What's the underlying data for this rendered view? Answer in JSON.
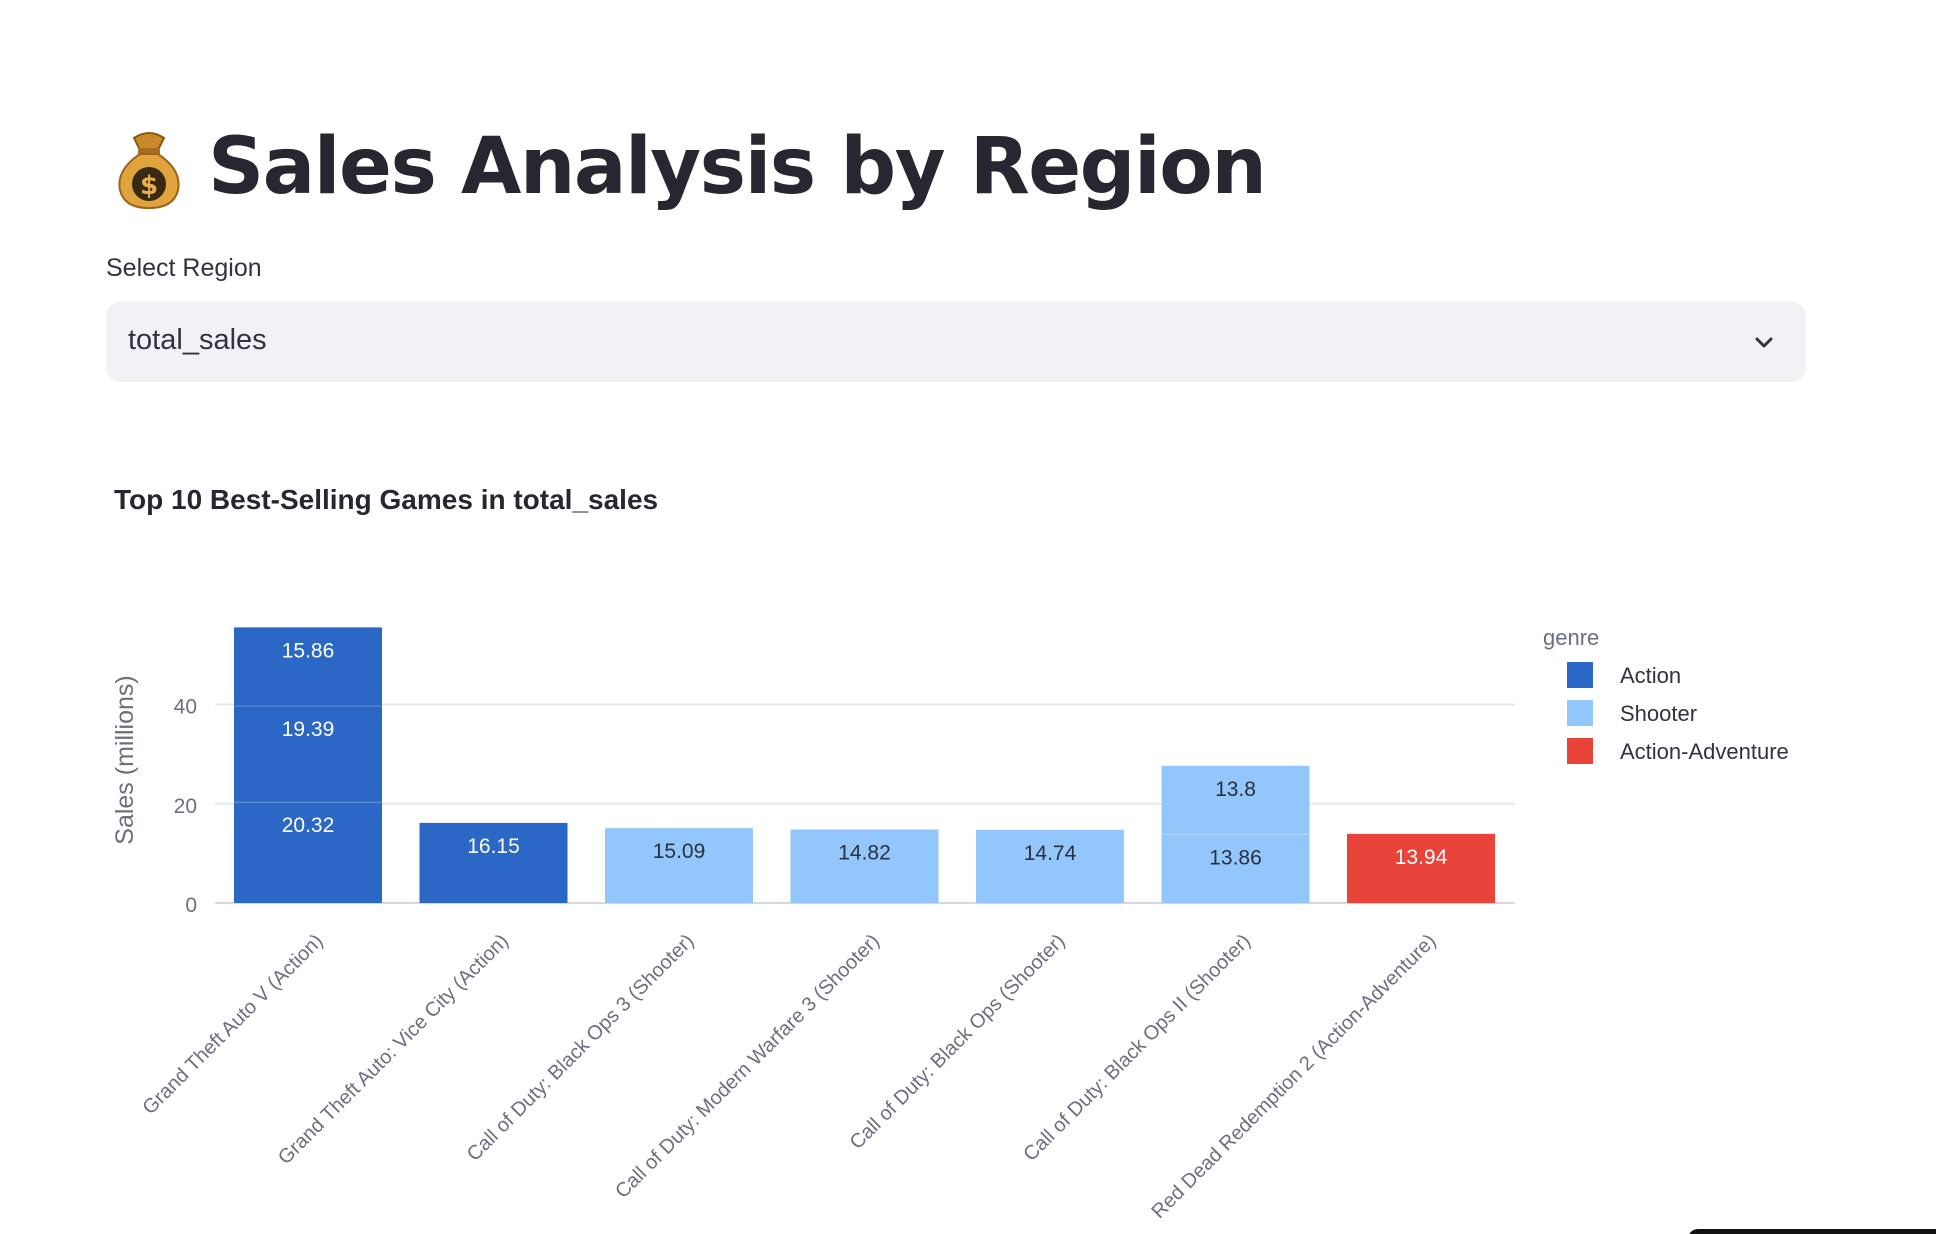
{
  "header": {
    "icon": "money-bag-icon",
    "title": "Sales Analysis by Region"
  },
  "region_select": {
    "label": "Select Region",
    "value": "total_sales",
    "icon": "chevron-down-icon"
  },
  "chart": {
    "title": "Top 10 Best-Selling Games in total_sales"
  },
  "chart_data": {
    "type": "bar",
    "stacked": true,
    "ylabel": "Sales (millions)",
    "xlabel": "",
    "ylim": [
      0,
      55
    ],
    "yticks": [
      0,
      20,
      40
    ],
    "grid": true,
    "legend_title": "genre",
    "legend_position": "right",
    "series": [
      {
        "name": "Action",
        "color": "#2b67c4"
      },
      {
        "name": "Shooter",
        "color": "#93c6fa"
      },
      {
        "name": "Action-Adventure",
        "color": "#e8443a"
      }
    ],
    "categories": [
      "Grand Theft Auto V (Action)",
      "Grand Theft Auto: Vice City (Action)",
      "Call of Duty: Black Ops 3 (Shooter)",
      "Call of Duty: Modern Warfare 3 (Shooter)",
      "Call of Duty: Black Ops (Shooter)",
      "Call of Duty: Black Ops II (Shooter)",
      "Red Dead Redemption 2 (Action-Adventure)"
    ],
    "bars": [
      {
        "genre": "Action",
        "segments": [
          20.32,
          19.39,
          15.86
        ],
        "labels": [
          "20.32",
          "19.39",
          "15.86"
        ]
      },
      {
        "genre": "Action",
        "segments": [
          16.15
        ],
        "labels": [
          "16.15"
        ]
      },
      {
        "genre": "Shooter",
        "segments": [
          15.09
        ],
        "labels": [
          "15.09"
        ]
      },
      {
        "genre": "Shooter",
        "segments": [
          14.82
        ],
        "labels": [
          "14.82"
        ]
      },
      {
        "genre": "Shooter",
        "segments": [
          14.74
        ],
        "labels": [
          "14.74"
        ]
      },
      {
        "genre": "Shooter",
        "segments": [
          13.86,
          13.8
        ],
        "labels": [
          "13.86",
          "13.8"
        ]
      },
      {
        "genre": "Action-Adventure",
        "segments": [
          13.94
        ],
        "labels": [
          "13.94"
        ]
      }
    ]
  }
}
